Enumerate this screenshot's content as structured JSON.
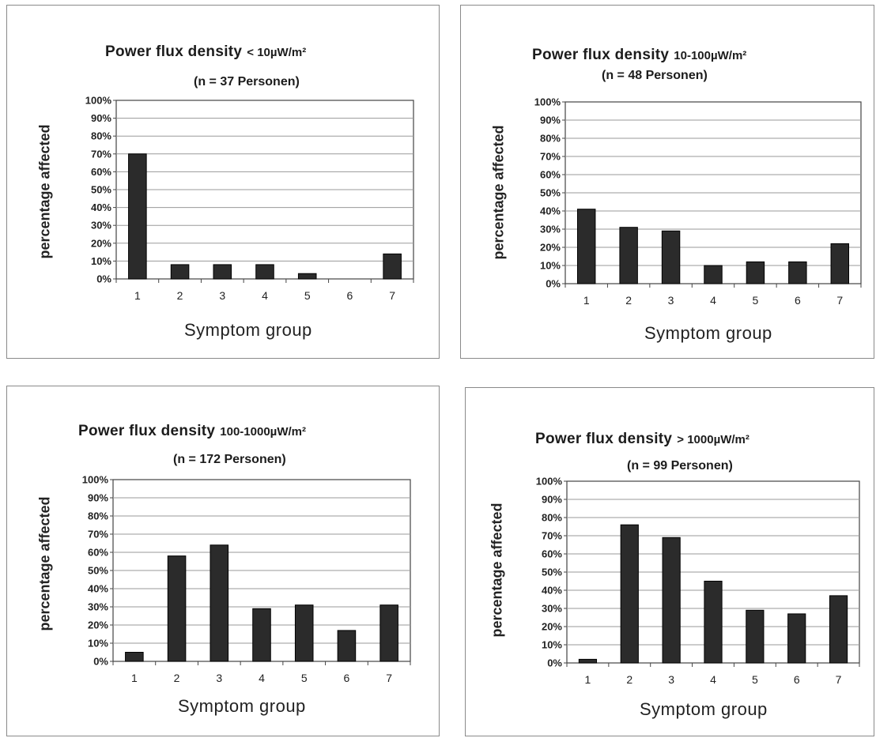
{
  "chart_data": [
    {
      "type": "bar",
      "title": "Power flux density",
      "density_label": "< 10µW/m²",
      "subtitle": "(n = 37 Personen)",
      "xlabel": "Symptom group",
      "ylabel": "percentage affected",
      "categories": [
        "1",
        "2",
        "3",
        "4",
        "5",
        "6",
        "7"
      ],
      "values": [
        70,
        8,
        8,
        8,
        3,
        0,
        14
      ],
      "ylim": [
        0,
        100
      ],
      "yticks": [
        "0%",
        "10%",
        "20%",
        "30%",
        "40%",
        "50%",
        "60%",
        "70%",
        "80%",
        "90%",
        "100%"
      ],
      "grid": true,
      "bar_color": "#2b2b2b"
    },
    {
      "type": "bar",
      "title": "Power flux density",
      "density_label": "10-100µW/m²",
      "subtitle": "(n = 48 Personen)",
      "xlabel": "Symptom group",
      "ylabel": "percentage affected",
      "categories": [
        "1",
        "2",
        "3",
        "4",
        "5",
        "6",
        "7"
      ],
      "values": [
        41,
        31,
        29,
        10,
        12,
        12,
        22
      ],
      "ylim": [
        0,
        100
      ],
      "yticks": [
        "0%",
        "10%",
        "20%",
        "30%",
        "40%",
        "50%",
        "60%",
        "70%",
        "80%",
        "90%",
        "100%"
      ],
      "grid": true,
      "bar_color": "#2b2b2b"
    },
    {
      "type": "bar",
      "title": "Power flux density",
      "density_label": "100-1000µW/m²",
      "subtitle": "(n = 172 Personen)",
      "xlabel": "Symptom group",
      "ylabel": "percentage affected",
      "categories": [
        "1",
        "2",
        "3",
        "4",
        "5",
        "6",
        "7"
      ],
      "values": [
        5,
        58,
        64,
        29,
        31,
        17,
        31
      ],
      "ylim": [
        0,
        100
      ],
      "yticks": [
        "0%",
        "10%",
        "20%",
        "30%",
        "40%",
        "50%",
        "60%",
        "70%",
        "80%",
        "90%",
        "100%"
      ],
      "grid": true,
      "bar_color": "#2b2b2b"
    },
    {
      "type": "bar",
      "title": "Power flux density",
      "density_label": "> 1000µW/m²",
      "subtitle": "(n = 99 Personen)",
      "xlabel": "Symptom group",
      "ylabel": "percentage affected",
      "categories": [
        "1",
        "2",
        "3",
        "4",
        "5",
        "6",
        "7"
      ],
      "values": [
        2,
        76,
        69,
        45,
        29,
        27,
        37
      ],
      "ylim": [
        0,
        100
      ],
      "yticks": [
        "0%",
        "10%",
        "20%",
        "30%",
        "40%",
        "50%",
        "60%",
        "70%",
        "80%",
        "90%",
        "100%"
      ],
      "grid": true,
      "bar_color": "#2b2b2b"
    }
  ]
}
